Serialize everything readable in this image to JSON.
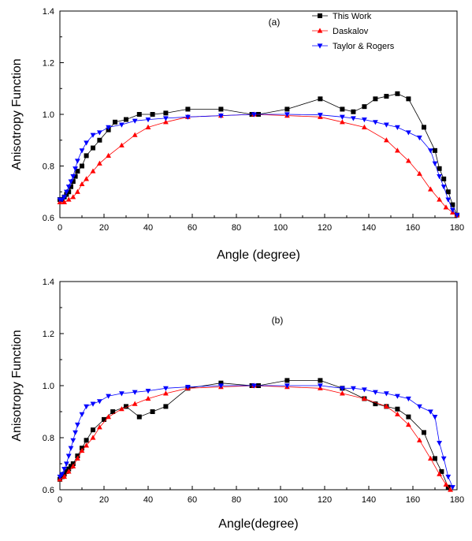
{
  "chart_data": [
    {
      "type": "line",
      "panel_label": "(a)",
      "xlabel": "Angle (degree)",
      "ylabel": "Anisotropy Function",
      "xlim": [
        0,
        180
      ],
      "ylim": [
        0.6,
        1.4
      ],
      "xticks": [
        0,
        20,
        40,
        60,
        80,
        100,
        120,
        140,
        160,
        180
      ],
      "yticks": [
        0.6,
        0.8,
        1.0,
        1.2,
        1.4
      ],
      "ytick_labels": [
        "0.6",
        "0.8",
        "1.0",
        "1.2",
        "1.4"
      ],
      "legend": "top-right",
      "series": [
        {
          "name": "This Work",
          "color": "#000000",
          "marker": "square",
          "x": [
            0,
            1,
            2,
            3,
            4,
            5,
            6,
            7,
            8,
            10,
            12,
            15,
            18,
            22,
            25,
            30,
            36,
            42,
            48,
            58,
            73,
            87,
            90,
            103,
            118,
            128,
            133,
            138,
            143,
            148,
            153,
            158,
            165,
            170,
            172,
            174,
            176,
            178,
            180
          ],
          "y": [
            0.67,
            0.67,
            0.68,
            0.69,
            0.7,
            0.72,
            0.74,
            0.76,
            0.78,
            0.8,
            0.84,
            0.87,
            0.9,
            0.94,
            0.97,
            0.98,
            1.0,
            1.0,
            1.005,
            1.02,
            1.02,
            1.0,
            1.0,
            1.02,
            1.06,
            1.02,
            1.01,
            1.03,
            1.06,
            1.07,
            1.08,
            1.06,
            0.95,
            0.86,
            0.79,
            0.75,
            0.7,
            0.65,
            0.61
          ]
        },
        {
          "name": "Daskalov",
          "color": "#ff0000",
          "marker": "triangle-up",
          "x": [
            0,
            2,
            4,
            6,
            8,
            10,
            12,
            15,
            18,
            22,
            28,
            34,
            40,
            48,
            58,
            73,
            88,
            103,
            118,
            128,
            138,
            148,
            153,
            158,
            163,
            168,
            172,
            175,
            178,
            180
          ],
          "y": [
            0.66,
            0.66,
            0.67,
            0.68,
            0.7,
            0.73,
            0.75,
            0.78,
            0.81,
            0.84,
            0.88,
            0.92,
            0.95,
            0.97,
            0.99,
            0.995,
            1.0,
            0.995,
            0.99,
            0.97,
            0.95,
            0.9,
            0.86,
            0.82,
            0.77,
            0.71,
            0.67,
            0.64,
            0.62,
            0.61
          ]
        },
        {
          "name": "Taylor & Rogers",
          "color": "#0000ff",
          "marker": "triangle-down",
          "x": [
            0,
            1,
            2,
            3,
            4,
            5,
            6,
            7,
            8,
            10,
            12,
            15,
            18,
            22,
            28,
            34,
            40,
            48,
            58,
            73,
            88,
            103,
            118,
            128,
            133,
            138,
            143,
            148,
            153,
            158,
            163,
            168,
            170,
            172,
            174,
            176,
            178,
            180
          ],
          "y": [
            0.67,
            0.67,
            0.68,
            0.7,
            0.72,
            0.74,
            0.76,
            0.79,
            0.82,
            0.86,
            0.89,
            0.92,
            0.93,
            0.95,
            0.96,
            0.975,
            0.98,
            0.985,
            0.99,
            0.995,
            1.0,
            1.0,
            0.998,
            0.99,
            0.985,
            0.98,
            0.97,
            0.96,
            0.95,
            0.93,
            0.91,
            0.86,
            0.81,
            0.76,
            0.72,
            0.67,
            0.63,
            0.61
          ]
        }
      ]
    },
    {
      "type": "line",
      "panel_label": "(b)",
      "xlabel": "Angle(degree)",
      "ylabel": "Anisotropy Function",
      "xlim": [
        0,
        180
      ],
      "ylim": [
        0.6,
        1.4
      ],
      "xticks": [
        0,
        20,
        40,
        60,
        80,
        100,
        120,
        140,
        160,
        180
      ],
      "yticks": [
        0.6,
        0.8,
        1.0,
        1.2,
        1.4
      ],
      "ytick_labels": [
        "0.6",
        "0.8",
        "1.0",
        "1.2",
        "1.4"
      ],
      "series": [
        {
          "name": "This Work",
          "color": "#000000",
          "marker": "square",
          "x": [
            0,
            1,
            2,
            3,
            4,
            5,
            6,
            8,
            10,
            12,
            15,
            20,
            24,
            30,
            36,
            42,
            48,
            58,
            73,
            87,
            90,
            103,
            118,
            128,
            138,
            143,
            148,
            153,
            158,
            165,
            170,
            173,
            176
          ],
          "y": [
            0.64,
            0.65,
            0.66,
            0.67,
            0.68,
            0.69,
            0.7,
            0.73,
            0.76,
            0.79,
            0.83,
            0.87,
            0.9,
            0.92,
            0.88,
            0.9,
            0.92,
            0.99,
            1.01,
            1.0,
            1.0,
            1.02,
            1.02,
            0.99,
            0.95,
            0.93,
            0.92,
            0.91,
            0.88,
            0.82,
            0.72,
            0.67,
            0.61
          ]
        },
        {
          "name": "Daskalov",
          "color": "#ff0000",
          "marker": "triangle-up",
          "x": [
            0,
            2,
            4,
            6,
            8,
            10,
            12,
            15,
            18,
            22,
            28,
            34,
            40,
            48,
            58,
            73,
            88,
            103,
            118,
            128,
            138,
            148,
            153,
            158,
            163,
            168,
            172,
            175,
            177
          ],
          "y": [
            0.64,
            0.65,
            0.67,
            0.69,
            0.72,
            0.75,
            0.77,
            0.8,
            0.84,
            0.88,
            0.91,
            0.93,
            0.95,
            0.97,
            0.99,
            0.995,
            1.0,
            0.995,
            0.99,
            0.97,
            0.95,
            0.92,
            0.89,
            0.85,
            0.79,
            0.72,
            0.66,
            0.62,
            0.6
          ]
        },
        {
          "name": "Taylor & Rogers",
          "color": "#0000ff",
          "marker": "triangle-down",
          "x": [
            0,
            1,
            2,
            3,
            4,
            5,
            6,
            7,
            8,
            10,
            12,
            15,
            18,
            22,
            28,
            34,
            40,
            48,
            58,
            73,
            88,
            103,
            118,
            128,
            133,
            138,
            143,
            148,
            153,
            158,
            163,
            168,
            170,
            172,
            174,
            176,
            178
          ],
          "y": [
            0.65,
            0.66,
            0.68,
            0.7,
            0.73,
            0.76,
            0.79,
            0.82,
            0.85,
            0.89,
            0.92,
            0.93,
            0.94,
            0.96,
            0.97,
            0.975,
            0.98,
            0.99,
            0.995,
            1.0,
            1.0,
            1.0,
            1.0,
            0.99,
            0.99,
            0.985,
            0.975,
            0.97,
            0.96,
            0.95,
            0.92,
            0.9,
            0.88,
            0.78,
            0.72,
            0.65,
            0.61
          ]
        }
      ]
    }
  ]
}
